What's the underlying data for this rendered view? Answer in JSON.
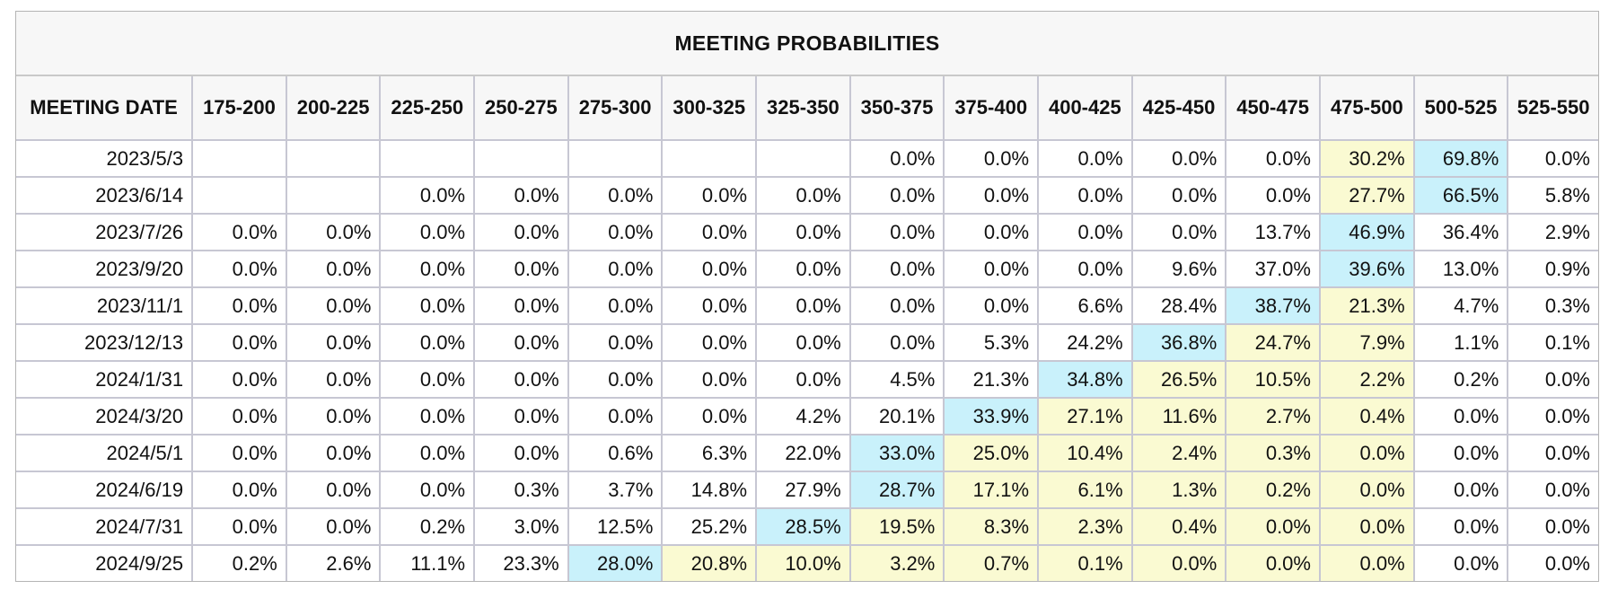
{
  "chart_data": {
    "type": "table",
    "title": "MEETING PROBABILITIES",
    "columns": [
      "MEETING DATE",
      "175-200",
      "200-225",
      "225-250",
      "250-275",
      "275-300",
      "300-325",
      "325-350",
      "350-375",
      "375-400",
      "400-425",
      "425-450",
      "450-475",
      "475-500",
      "500-525",
      "525-550"
    ],
    "rows": [
      {
        "date": "2023/5/3",
        "values": [
          "",
          "",
          "",
          "",
          "",
          "",
          "",
          "0.0%",
          "0.0%",
          "0.0%",
          "0.0%",
          "0.0%",
          "30.2%",
          "69.8%",
          "0.0%"
        ]
      },
      {
        "date": "2023/6/14",
        "values": [
          "",
          "",
          "0.0%",
          "0.0%",
          "0.0%",
          "0.0%",
          "0.0%",
          "0.0%",
          "0.0%",
          "0.0%",
          "0.0%",
          "0.0%",
          "27.7%",
          "66.5%",
          "5.8%"
        ]
      },
      {
        "date": "2023/7/26",
        "values": [
          "0.0%",
          "0.0%",
          "0.0%",
          "0.0%",
          "0.0%",
          "0.0%",
          "0.0%",
          "0.0%",
          "0.0%",
          "0.0%",
          "0.0%",
          "13.7%",
          "46.9%",
          "36.4%",
          "2.9%"
        ]
      },
      {
        "date": "2023/9/20",
        "values": [
          "0.0%",
          "0.0%",
          "0.0%",
          "0.0%",
          "0.0%",
          "0.0%",
          "0.0%",
          "0.0%",
          "0.0%",
          "0.0%",
          "9.6%",
          "37.0%",
          "39.6%",
          "13.0%",
          "0.9%"
        ]
      },
      {
        "date": "2023/11/1",
        "values": [
          "0.0%",
          "0.0%",
          "0.0%",
          "0.0%",
          "0.0%",
          "0.0%",
          "0.0%",
          "0.0%",
          "0.0%",
          "6.6%",
          "28.4%",
          "38.7%",
          "21.3%",
          "4.7%",
          "0.3%"
        ]
      },
      {
        "date": "2023/12/13",
        "values": [
          "0.0%",
          "0.0%",
          "0.0%",
          "0.0%",
          "0.0%",
          "0.0%",
          "0.0%",
          "0.0%",
          "5.3%",
          "24.2%",
          "36.8%",
          "24.7%",
          "7.9%",
          "1.1%",
          "0.1%"
        ]
      },
      {
        "date": "2024/1/31",
        "values": [
          "0.0%",
          "0.0%",
          "0.0%",
          "0.0%",
          "0.0%",
          "0.0%",
          "0.0%",
          "4.5%",
          "21.3%",
          "34.8%",
          "26.5%",
          "10.5%",
          "2.2%",
          "0.2%",
          "0.0%"
        ]
      },
      {
        "date": "2024/3/20",
        "values": [
          "0.0%",
          "0.0%",
          "0.0%",
          "0.0%",
          "0.0%",
          "0.0%",
          "4.2%",
          "20.1%",
          "33.9%",
          "27.1%",
          "11.6%",
          "2.7%",
          "0.4%",
          "0.0%",
          "0.0%"
        ]
      },
      {
        "date": "2024/5/1",
        "values": [
          "0.0%",
          "0.0%",
          "0.0%",
          "0.0%",
          "0.6%",
          "6.3%",
          "22.0%",
          "33.0%",
          "25.0%",
          "10.4%",
          "2.4%",
          "0.3%",
          "0.0%",
          "0.0%",
          "0.0%"
        ]
      },
      {
        "date": "2024/6/19",
        "values": [
          "0.0%",
          "0.0%",
          "0.0%",
          "0.3%",
          "3.7%",
          "14.8%",
          "27.9%",
          "28.7%",
          "17.1%",
          "6.1%",
          "1.3%",
          "0.2%",
          "0.0%",
          "0.0%",
          "0.0%"
        ]
      },
      {
        "date": "2024/7/31",
        "values": [
          "0.0%",
          "0.0%",
          "0.2%",
          "3.0%",
          "12.5%",
          "25.2%",
          "28.5%",
          "19.5%",
          "8.3%",
          "2.3%",
          "0.4%",
          "0.0%",
          "0.0%",
          "0.0%",
          "0.0%"
        ]
      },
      {
        "date": "2024/9/25",
        "values": [
          "0.2%",
          "2.6%",
          "11.1%",
          "23.3%",
          "28.0%",
          "20.8%",
          "10.0%",
          "3.2%",
          "0.7%",
          "0.1%",
          "0.0%",
          "0.0%",
          "0.0%",
          "0.0%",
          "0.0%"
        ]
      }
    ],
    "highlight_colors": {
      "max": "#c9f1fb",
      "other": "#fafad2"
    },
    "highlights": [
      {
        "max": 13,
        "other": [
          12
        ]
      },
      {
        "max": 13,
        "other": [
          12
        ]
      },
      {
        "max": 12,
        "other": []
      },
      {
        "max": 12,
        "other": []
      },
      {
        "max": 11,
        "other": [
          12
        ]
      },
      {
        "max": 10,
        "other": [
          11,
          12
        ]
      },
      {
        "max": 9,
        "other": [
          10,
          11,
          12
        ]
      },
      {
        "max": 8,
        "other": [
          9,
          10,
          11,
          12
        ]
      },
      {
        "max": 7,
        "other": [
          8,
          9,
          10,
          11,
          12
        ]
      },
      {
        "max": 7,
        "other": [
          8,
          9,
          10,
          11,
          12
        ]
      },
      {
        "max": 6,
        "other": [
          7,
          8,
          9,
          10,
          11,
          12
        ]
      },
      {
        "max": 4,
        "other": [
          5,
          6,
          7,
          8,
          9,
          10,
          11,
          12
        ]
      }
    ]
  }
}
